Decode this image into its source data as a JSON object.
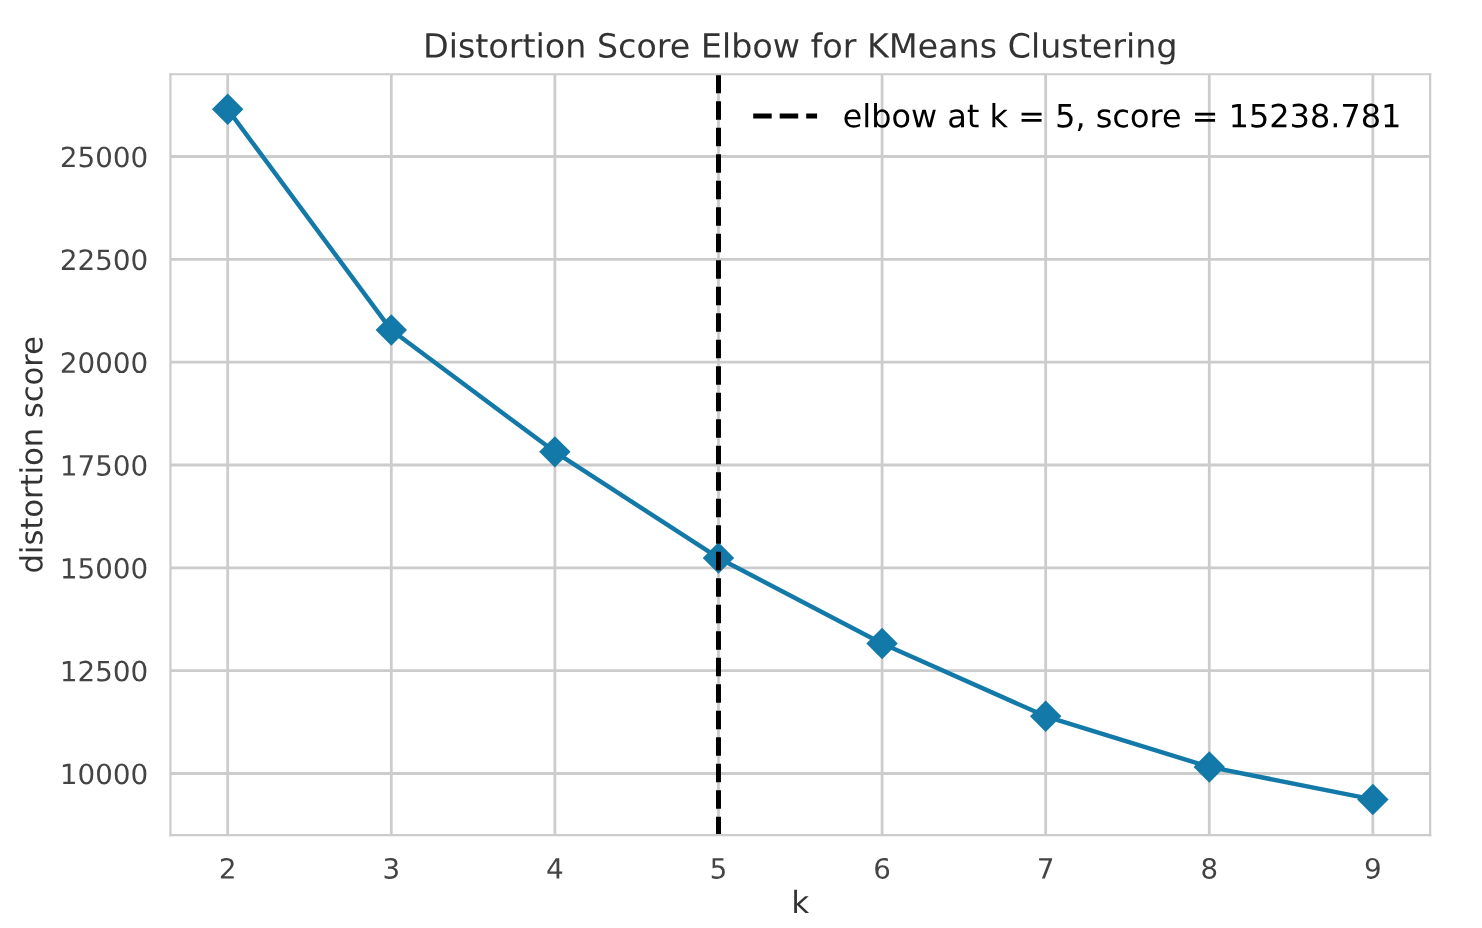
{
  "chart_data": {
    "type": "line",
    "title": "Distortion Score Elbow for KMeans Clustering",
    "xlabel": "k",
    "ylabel": "distortion score",
    "x": [
      2,
      3,
      4,
      5,
      6,
      7,
      8,
      9
    ],
    "series": [
      {
        "color": "#1279a8",
        "values": [
          26150,
          20780,
          17820,
          15240,
          13160,
          11390,
          10160,
          9370
        ]
      }
    ],
    "xlim": [
      1.65,
      9.35
    ],
    "ylim": [
      8500,
      27000
    ],
    "xticks": [
      2,
      3,
      4,
      5,
      6,
      7,
      8,
      9
    ],
    "yticks": [
      10000,
      12500,
      15000,
      17500,
      20000,
      22500,
      25000
    ],
    "ref_lines": [
      {
        "axis": "x",
        "value": 5,
        "label": "elbow at k = 5, score = 15238.781",
        "color": "#000000",
        "line_style": "dashed"
      }
    ],
    "grid": true,
    "legend": "top right",
    "marker": "diamond",
    "line_style": "solid"
  }
}
